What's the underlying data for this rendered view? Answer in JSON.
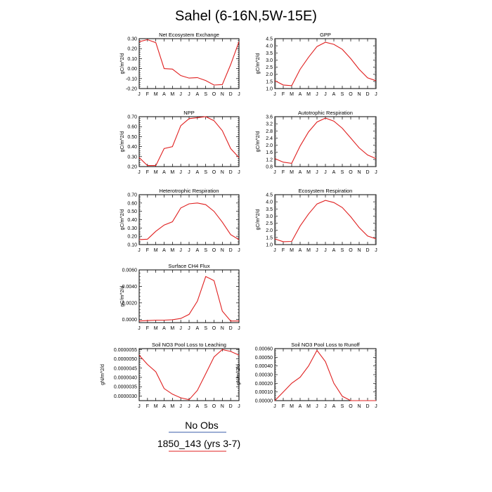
{
  "title": "Sahel (6-16N,5W-15E)",
  "legend": {
    "entries": [
      {
        "label": "No Obs",
        "color": "#3b5ea8"
      },
      {
        "label": "1850_143 (yrs 3-7)",
        "color": "#e02020"
      }
    ]
  },
  "chart_data": [
    {
      "type": "line",
      "title": "Net Ecosystem Exchange",
      "ylabel": "gC/m^2/d",
      "categories": [
        "J",
        "F",
        "M",
        "A",
        "M",
        "J",
        "J",
        "A",
        "S",
        "O",
        "N",
        "D",
        "J"
      ],
      "ylim": [
        -0.2,
        0.3
      ],
      "yticks": [
        -0.2,
        -0.1,
        0.0,
        0.1,
        0.2,
        0.3
      ],
      "ytick_labels": [
        "-0.20",
        "-0.10",
        "0.00",
        "0.10",
        "0.20",
        "0.30"
      ],
      "series": [
        {
          "color": "#e02020",
          "values": [
            0.27,
            0.29,
            0.26,
            0.0,
            -0.005,
            -0.07,
            -0.095,
            -0.09,
            -0.12,
            -0.165,
            -0.16,
            0.04,
            0.27
          ]
        }
      ]
    },
    {
      "type": "line",
      "title": "GPP",
      "ylabel": "gC/m^2/d",
      "categories": [
        "J",
        "F",
        "M",
        "A",
        "M",
        "J",
        "J",
        "A",
        "S",
        "O",
        "N",
        "D",
        "J"
      ],
      "ylim": [
        1.0,
        4.5
      ],
      "yticks": [
        1.0,
        1.5,
        2.0,
        2.5,
        3.0,
        3.5,
        4.0,
        4.5
      ],
      "ytick_labels": [
        "1.0",
        "1.5",
        "2.0",
        "2.5",
        "3.0",
        "3.5",
        "4.0",
        "4.5"
      ],
      "series": [
        {
          "color": "#e02020",
          "values": [
            1.55,
            1.25,
            1.2,
            2.35,
            3.2,
            3.95,
            4.25,
            4.1,
            3.75,
            3.1,
            2.35,
            1.75,
            1.55
          ]
        }
      ]
    },
    {
      "type": "line",
      "title": "NPP",
      "ylabel": "gC/m^2/d",
      "categories": [
        "J",
        "F",
        "M",
        "A",
        "M",
        "J",
        "J",
        "A",
        "S",
        "O",
        "N",
        "D",
        "J"
      ],
      "ylim": [
        0.2,
        0.7
      ],
      "yticks": [
        0.2,
        0.3,
        0.4,
        0.5,
        0.6,
        0.7
      ],
      "ytick_labels": [
        "0.20",
        "0.30",
        "0.40",
        "0.50",
        "0.60",
        "0.70"
      ],
      "series": [
        {
          "color": "#e02020",
          "values": [
            0.29,
            0.21,
            0.21,
            0.38,
            0.4,
            0.61,
            0.68,
            0.69,
            0.7,
            0.66,
            0.56,
            0.38,
            0.29
          ]
        }
      ]
    },
    {
      "type": "line",
      "title": "Autotrophic Respiration",
      "ylabel": "gC/m^2/d",
      "categories": [
        "J",
        "F",
        "M",
        "A",
        "M",
        "J",
        "J",
        "A",
        "S",
        "O",
        "N",
        "D",
        "J"
      ],
      "ylim": [
        0.8,
        3.6
      ],
      "yticks": [
        0.8,
        1.2,
        1.6,
        2.0,
        2.4,
        2.8,
        3.2,
        3.6
      ],
      "ytick_labels": [
        "0.8",
        "1.2",
        "1.6",
        "2.0",
        "2.4",
        "2.8",
        "3.2",
        "3.6"
      ],
      "series": [
        {
          "color": "#e02020",
          "values": [
            1.25,
            1.05,
            0.98,
            1.95,
            2.75,
            3.3,
            3.52,
            3.35,
            2.95,
            2.4,
            1.85,
            1.45,
            1.25
          ]
        }
      ]
    },
    {
      "type": "line",
      "title": "Heterotrophic Respiration",
      "ylabel": "gC/m^2/d",
      "categories": [
        "J",
        "F",
        "M",
        "A",
        "M",
        "J",
        "J",
        "A",
        "S",
        "O",
        "N",
        "D",
        "J"
      ],
      "ylim": [
        0.1,
        0.7
      ],
      "yticks": [
        0.1,
        0.2,
        0.3,
        0.4,
        0.5,
        0.6,
        0.7
      ],
      "ytick_labels": [
        "0.10",
        "0.20",
        "0.30",
        "0.40",
        "0.50",
        "0.60",
        "0.70"
      ],
      "series": [
        {
          "color": "#e02020",
          "values": [
            0.16,
            0.165,
            0.26,
            0.335,
            0.375,
            0.54,
            0.59,
            0.6,
            0.58,
            0.5,
            0.37,
            0.22,
            0.16
          ]
        }
      ]
    },
    {
      "type": "line",
      "title": "Ecosystem Respiration",
      "ylabel": "gC/m^2/d",
      "categories": [
        "J",
        "F",
        "M",
        "A",
        "M",
        "J",
        "J",
        "A",
        "S",
        "O",
        "N",
        "D",
        "J"
      ],
      "ylim": [
        1.0,
        4.5
      ],
      "yticks": [
        1.0,
        1.5,
        2.0,
        2.5,
        3.0,
        3.5,
        4.0,
        4.5
      ],
      "ytick_labels": [
        "1.0",
        "1.5",
        "2.0",
        "2.5",
        "3.0",
        "3.5",
        "4.0",
        "4.5"
      ],
      "series": [
        {
          "color": "#e02020",
          "values": [
            1.4,
            1.2,
            1.22,
            2.3,
            3.15,
            3.85,
            4.1,
            3.95,
            3.6,
            2.95,
            2.2,
            1.6,
            1.4
          ]
        }
      ]
    },
    {
      "type": "line",
      "title": "Surface CH4 Flux",
      "ylabel": "gC/m^2/d",
      "categories": [
        "J",
        "F",
        "M",
        "A",
        "M",
        "J",
        "J",
        "A",
        "S",
        "O",
        "N",
        "D",
        "J"
      ],
      "ylim": [
        -0.0004,
        0.006
      ],
      "yticks": [
        0.0,
        0.002,
        0.004,
        0.006
      ],
      "ytick_labels": [
        "0.0000",
        "0.0020",
        "0.0040",
        "0.0060"
      ],
      "series": [
        {
          "color": "#e02020",
          "values": [
            -0.0002,
            -0.00015,
            -0.0001,
            -0.0001,
            -5e-05,
            0.0001,
            0.0006,
            0.0022,
            0.0052,
            0.0047,
            0.001,
            -0.0002,
            -0.0002
          ]
        }
      ]
    },
    {
      "type": "line",
      "title": "Soil NO3 Pool Loss to Leaching",
      "ylabel": "gN/m^2/d",
      "categories": [
        "J",
        "F",
        "M",
        "A",
        "M",
        "J",
        "J",
        "A",
        "S",
        "O",
        "N",
        "D",
        "J"
      ],
      "ylim": [
        2.75e-06,
        5.55e-06
      ],
      "yticks": [
        3e-06,
        3.5e-06,
        4e-06,
        4.5e-06,
        5e-06,
        5.5e-06
      ],
      "ytick_labels": [
        "0.0000030",
        "0.0000035",
        "0.0000040",
        "0.0000045",
        "0.0000050",
        "0.0000055"
      ],
      "series": [
        {
          "color": "#e02020",
          "values": [
            5.2e-06,
            4.7e-06,
            4.3e-06,
            3.4e-06,
            3.1e-06,
            2.9e-06,
            2.8e-06,
            3.3e-06,
            4.2e-06,
            5.1e-06,
            5.5e-06,
            5.4e-06,
            5.2e-06
          ]
        }
      ]
    },
    {
      "type": "line",
      "title": "Soil NO3 Pool Loss to Runoff",
      "ylabel": "gN/m^2/d",
      "categories": [
        "J",
        "F",
        "M",
        "A",
        "M",
        "J",
        "J",
        "A",
        "S",
        "O",
        "N",
        "D",
        "J"
      ],
      "ylim": [
        0.0,
        0.0006
      ],
      "yticks": [
        0.0,
        0.0001,
        0.0002,
        0.0003,
        0.0004,
        0.0005,
        0.0006
      ],
      "ytick_labels": [
        "0.00000",
        "0.00010",
        "0.00020",
        "0.00030",
        "0.00040",
        "0.00050",
        "0.00060"
      ],
      "series": [
        {
          "color": "#e02020",
          "values": [
            0.0,
            0.0001,
            0.0002,
            0.00027,
            0.0004,
            0.00058,
            0.00045,
            0.0002,
            5e-05,
            0.0,
            0.0,
            0.0,
            0.0
          ]
        }
      ]
    }
  ]
}
